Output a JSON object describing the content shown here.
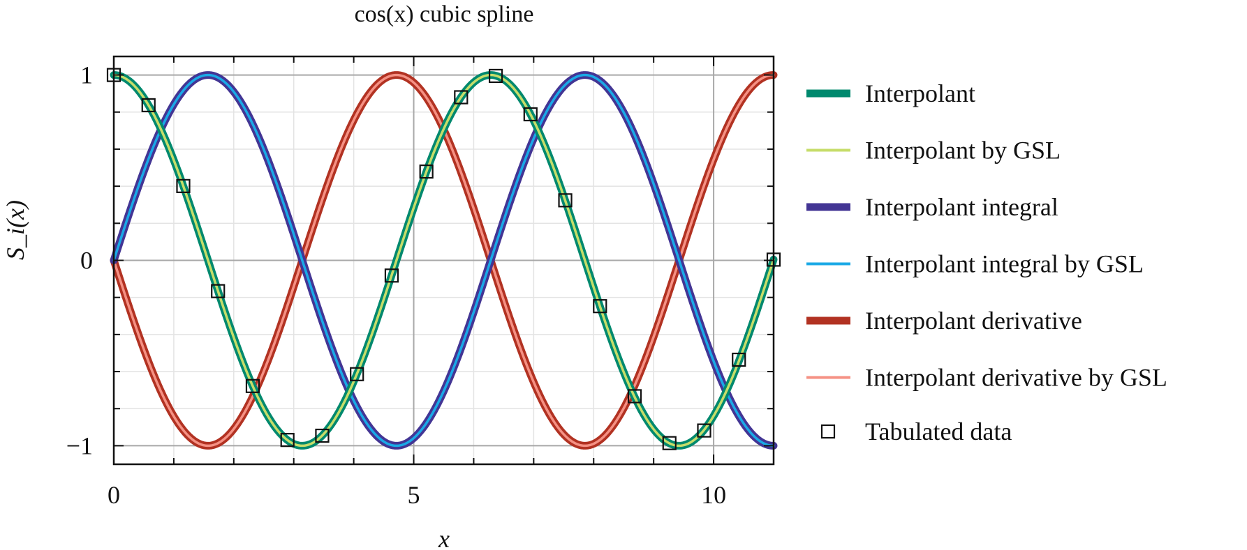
{
  "chart_data": {
    "type": "line",
    "title": "cos(x) cubic spline",
    "xlabel": "x",
    "ylabel": "S_i(x)",
    "xlim": [
      0,
      11
    ],
    "ylim": [
      -1.1,
      1.1
    ],
    "xticks": [
      0,
      5,
      10
    ],
    "xtick_labels": [
      "0",
      "5",
      "10"
    ],
    "yticks": [
      -1,
      0,
      1
    ],
    "ytick_labels": [
      "−1",
      "0",
      "1"
    ],
    "grid": true,
    "legend_position": "right",
    "series": [
      {
        "name": "Interpolant",
        "function": "cos(x)",
        "color": "#00896e",
        "style": "thick"
      },
      {
        "name": "Interpolant by GSL",
        "function": "cos(x)",
        "color": "#c6dd6a",
        "style": "thin"
      },
      {
        "name": "Interpolant integral",
        "function": "sin(x)",
        "color": "#433594",
        "style": "thick"
      },
      {
        "name": "Interpolant integral by GSL",
        "function": "sin(x)",
        "color": "#1aa9e6",
        "style": "thin"
      },
      {
        "name": "Interpolant derivative",
        "function": "-sin(x)",
        "color": "#b23222",
        "style": "thick"
      },
      {
        "name": "Interpolant derivative by GSL",
        "function": "-sin(x)",
        "color": "#f59184",
        "style": "thin"
      }
    ],
    "tabulated_data": {
      "name": "Tabulated data",
      "marker": "open-square",
      "x": [
        0,
        0.579,
        1.158,
        1.737,
        2.316,
        2.895,
        3.474,
        4.053,
        4.632,
        5.211,
        5.789,
        6.368,
        6.947,
        7.526,
        8.105,
        8.684,
        9.263,
        9.842,
        10.421,
        11.0
      ],
      "y": [
        1.0,
        0.837,
        0.401,
        -0.166,
        -0.678,
        -0.969,
        -0.946,
        -0.614,
        -0.082,
        0.479,
        0.88,
        0.995,
        0.788,
        0.324,
        -0.247,
        -0.733,
        -0.986,
        -0.918,
        -0.536,
        0.004
      ]
    }
  }
}
